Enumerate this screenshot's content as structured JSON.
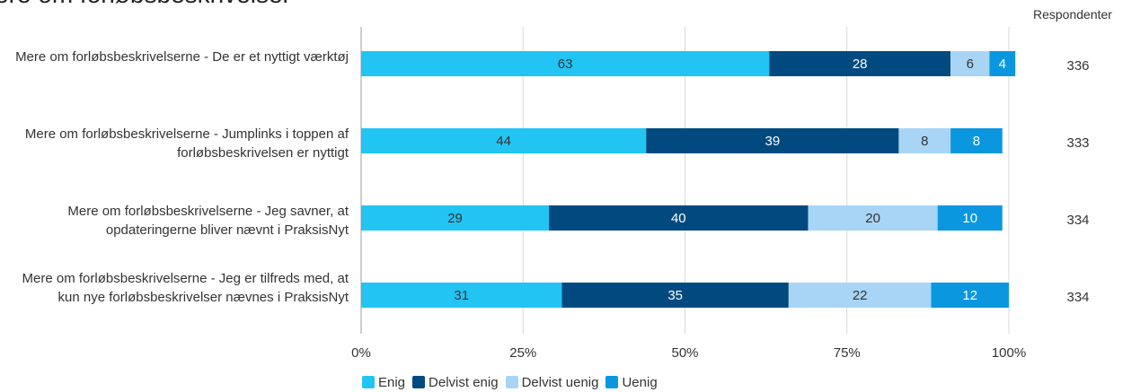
{
  "page": {
    "title": "ere om forløbsbeskrivelser",
    "respondents_header": "Respondenter"
  },
  "chart_data": {
    "type": "bar",
    "orientation": "horizontal",
    "stacked": true,
    "title": "",
    "xlabel": "",
    "ylabel": "",
    "xlim": [
      0,
      100
    ],
    "x_ticks": [
      "0%",
      "25%",
      "50%",
      "75%",
      "100%"
    ],
    "grid": true,
    "legend_position": "bottom-left",
    "categories": [
      "Mere om forløbsbeskrivelserne - De er et nyttigt værktøj",
      "Mere om forløbsbeskrivelserne - Jumplinks i toppen af forløbsbeskrivelsen er nyttigt",
      "Mere om forløbsbeskrivelserne - Jeg savner, at opdateringerne bliver nævnt i PraksisNyt",
      "Mere om forløbsbeskrivelserne - Jeg er tilfreds med, at kun nye forløbsbeskrivelser nævnes i PraksisNyt"
    ],
    "series": [
      {
        "name": "Enig",
        "color": "#22c4f3",
        "text_color": "#333333",
        "values": [
          63,
          44,
          29,
          31
        ]
      },
      {
        "name": "Delvist enig",
        "color": "#004a80",
        "text_color": "#ffffff",
        "values": [
          28,
          39,
          40,
          35
        ]
      },
      {
        "name": "Delvist uenig",
        "color": "#a8d5f5",
        "text_color": "#333333",
        "values": [
          6,
          8,
          20,
          22
        ]
      },
      {
        "name": "Uenig",
        "color": "#0b97e0",
        "text_color": "#ffffff",
        "values": [
          4,
          8,
          10,
          12
        ]
      }
    ],
    "respondents": [
      336,
      333,
      334,
      334
    ]
  }
}
